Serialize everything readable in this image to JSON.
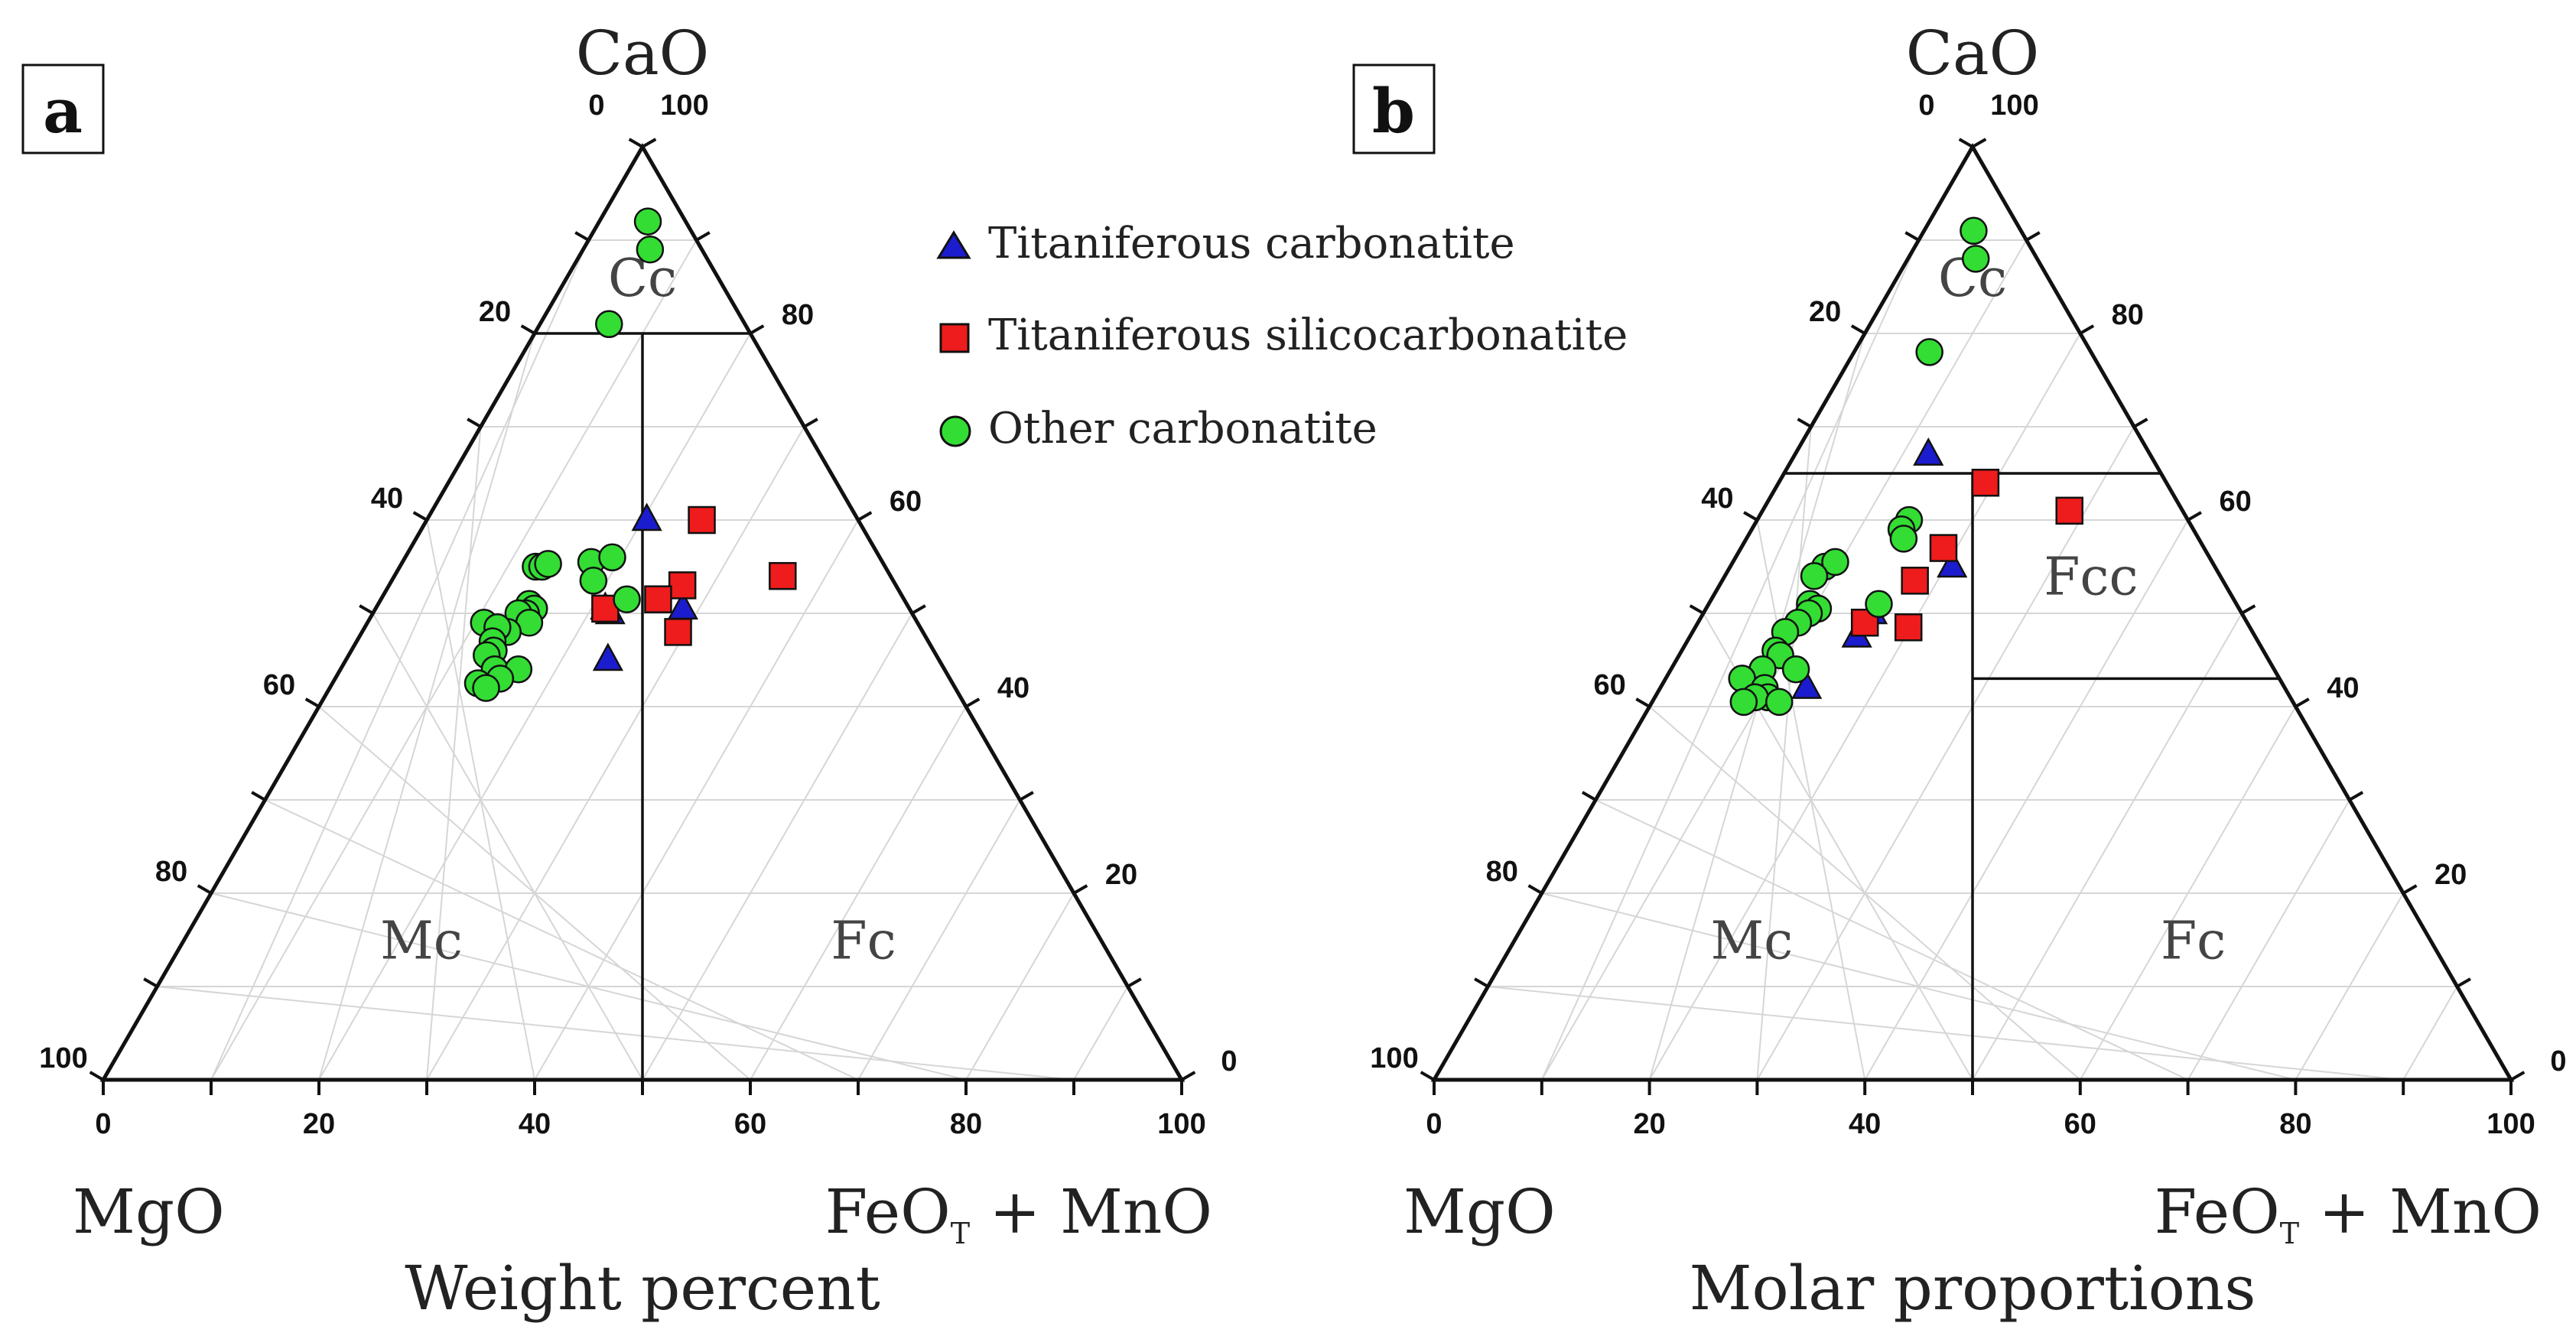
{
  "colors": {
    "titaniferous_carbonatite": "#1c1ccf",
    "titaniferous_silicocarbonatite": "#ee1c1c",
    "other_carbonatite": "#33dd33",
    "grid": "#d6d6d6",
    "axis": "#111111"
  },
  "legend": [
    {
      "key": "titaniferous_carbonatite",
      "label": "Titaniferous carbonatite",
      "marker": "triangle"
    },
    {
      "key": "titaniferous_silicocarbonatite",
      "label": "Titaniferous silicocarbonatite",
      "marker": "square"
    },
    {
      "key": "other_carbonatite",
      "label": "Other carbonatite",
      "marker": "circle"
    }
  ],
  "chart_data": [
    {
      "type": "scatter",
      "diagram": "ternary",
      "panel_label": "a",
      "subtitle": "Weight percent",
      "apex_labels": {
        "top": "CaO",
        "left": "MgO",
        "right_main": "FeO",
        "right_sub": "T",
        "right_tail": " + MnO"
      },
      "axis_ranges": {
        "CaO": [
          0,
          100
        ],
        "MgO": [
          0,
          100
        ],
        "FeO_MnO": [
          0,
          100
        ]
      },
      "ticks": {
        "bottom": [
          "0",
          "20",
          "40",
          "60",
          "80",
          "100"
        ],
        "left": [
          "100",
          "80",
          "60",
          "40",
          "20",
          "0"
        ],
        "right": [
          "0",
          "20",
          "40",
          "60",
          "80",
          "100"
        ]
      },
      "field_labels": [
        {
          "text": "Cc",
          "CaO": 84,
          "FeO_MnO": 8
        },
        {
          "text": "Mc",
          "CaO": 13,
          "FeO_MnO": 23
        },
        {
          "text": "Fc",
          "CaO": 13,
          "FeO_MnO": 64
        }
      ],
      "boundaries": [
        {
          "from": {
            "CaO": 80,
            "FeO_MnO": 0
          },
          "to": {
            "CaO": 80,
            "FeO_MnO": 20
          }
        },
        {
          "from": {
            "CaO": 80,
            "FeO_MnO": 10
          },
          "to": {
            "CaO": 0,
            "FeO_MnO": 50
          }
        }
      ],
      "series": [
        {
          "key": "titaniferous_carbonatite",
          "points": [
            {
              "CaO": 60,
              "FeO_MnO": 20.4
            },
            {
              "CaO": 50,
              "FeO_MnO": 22
            },
            {
              "CaO": 50.5,
              "FeO_MnO": 21.3
            },
            {
              "CaO": 50.5,
              "FeO_MnO": 28.5
            },
            {
              "CaO": 45,
              "FeO_MnO": 24.3
            }
          ]
        },
        {
          "key": "titaniferous_silicocarbonatite",
          "points": [
            {
              "CaO": 60,
              "FeO_MnO": 25.5
            },
            {
              "CaO": 54,
              "FeO_MnO": 36
            },
            {
              "CaO": 53,
              "FeO_MnO": 27.2
            },
            {
              "CaO": 51.5,
              "FeO_MnO": 25.7
            },
            {
              "CaO": 50.5,
              "FeO_MnO": 21.3
            },
            {
              "CaO": 48,
              "FeO_MnO": 29.3
            }
          ]
        },
        {
          "key": "other_carbonatite",
          "points": [
            {
              "CaO": 92,
              "FeO_MnO": 4.5
            },
            {
              "CaO": 89,
              "FeO_MnO": 6.2
            },
            {
              "CaO": 81,
              "FeO_MnO": 6.4
            },
            {
              "CaO": 55,
              "FeO_MnO": 12.6
            },
            {
              "CaO": 55,
              "FeO_MnO": 13.2
            },
            {
              "CaO": 55.3,
              "FeO_MnO": 13.6
            },
            {
              "CaO": 55.5,
              "FeO_MnO": 17.5
            },
            {
              "CaO": 56,
              "FeO_MnO": 19.2
            },
            {
              "CaO": 53.5,
              "FeO_MnO": 18.7
            },
            {
              "CaO": 51.5,
              "FeO_MnO": 22.8
            },
            {
              "CaO": 51,
              "FeO_MnO": 14
            },
            {
              "CaO": 50.5,
              "FeO_MnO": 14.7
            },
            {
              "CaO": 50,
              "FeO_MnO": 14.2
            },
            {
              "CaO": 50,
              "FeO_MnO": 13.5
            },
            {
              "CaO": 49,
              "FeO_MnO": 15
            },
            {
              "CaO": 48,
              "FeO_MnO": 13.5
            },
            {
              "CaO": 49,
              "FeO_MnO": 10.8
            },
            {
              "CaO": 48.5,
              "FeO_MnO": 12.3
            },
            {
              "CaO": 47,
              "FeO_MnO": 12.6
            },
            {
              "CaO": 46,
              "FeO_MnO": 13.2
            },
            {
              "CaO": 45.5,
              "FeO_MnO": 12.8
            },
            {
              "CaO": 44,
              "FeO_MnO": 14.3
            },
            {
              "CaO": 44,
              "FeO_MnO": 16.5
            },
            {
              "CaO": 43,
              "FeO_MnO": 15.3
            },
            {
              "CaO": 42.5,
              "FeO_MnO": 13.5
            },
            {
              "CaO": 42,
              "FeO_MnO": 14.5
            }
          ]
        }
      ]
    },
    {
      "type": "scatter",
      "diagram": "ternary",
      "panel_label": "b",
      "subtitle": "Molar proportions",
      "apex_labels": {
        "top": "CaO",
        "left": "MgO",
        "right_main": "FeO",
        "right_sub": "T",
        "right_tail": " + MnO"
      },
      "axis_ranges": {
        "CaO": [
          0,
          100
        ],
        "MgO": [
          0,
          100
        ],
        "FeO_MnO": [
          0,
          100
        ]
      },
      "ticks": {
        "bottom": [
          "0",
          "20",
          "40",
          "60",
          "80",
          "100"
        ],
        "left": [
          "100",
          "80",
          "60",
          "40",
          "20",
          "0"
        ],
        "right": [
          "0",
          "20",
          "40",
          "60",
          "80",
          "100"
        ]
      },
      "field_labels": [
        {
          "text": "Cc",
          "CaO": 84,
          "FeO_MnO": 8
        },
        {
          "text": "Fcc",
          "CaO": 52,
          "FeO_MnO": 35
        },
        {
          "text": "Mc",
          "CaO": 13,
          "FeO_MnO": 23
        },
        {
          "text": "Fc",
          "CaO": 13,
          "FeO_MnO": 64
        }
      ],
      "boundaries": [
        {
          "from": {
            "CaO": 65,
            "FeO_MnO": 0
          },
          "to": {
            "CaO": 65,
            "FeO_MnO": 35
          }
        },
        {
          "from": {
            "CaO": 65,
            "FeO_MnO": 17.5
          },
          "to": {
            "CaO": 0,
            "FeO_MnO": 50
          }
        },
        {
          "from": {
            "CaO": 43,
            "FeO_MnO": 28.5
          },
          "to": {
            "CaO": 43,
            "FeO_MnO": 57
          }
        }
      ],
      "series": [
        {
          "key": "titaniferous_carbonatite",
          "points": [
            {
              "CaO": 67,
              "FeO_MnO": 12.4
            },
            {
              "CaO": 55,
              "FeO_MnO": 20.6
            },
            {
              "CaO": 50,
              "FeO_MnO": 15.7
            },
            {
              "CaO": 47.5,
              "FeO_MnO": 15.5
            },
            {
              "CaO": 42,
              "FeO_MnO": 13.6
            }
          ]
        },
        {
          "key": "titaniferous_silicocarbonatite",
          "points": [
            {
              "CaO": 64,
              "FeO_MnO": 19.2
            },
            {
              "CaO": 61,
              "FeO_MnO": 28.5
            },
            {
              "CaO": 57,
              "FeO_MnO": 18.8
            },
            {
              "CaO": 53.5,
              "FeO_MnO": 17.9
            },
            {
              "CaO": 49,
              "FeO_MnO": 15.5
            },
            {
              "CaO": 48.5,
              "FeO_MnO": 19.8
            }
          ]
        },
        {
          "key": "other_carbonatite",
          "points": [
            {
              "CaO": 91,
              "FeO_MnO": 4.6
            },
            {
              "CaO": 88,
              "FeO_MnO": 6.3
            },
            {
              "CaO": 78,
              "FeO_MnO": 7
            },
            {
              "CaO": 60,
              "FeO_MnO": 14.1
            },
            {
              "CaO": 59,
              "FeO_MnO": 13.9
            },
            {
              "CaO": 58,
              "FeO_MnO": 14.6
            },
            {
              "CaO": 51,
              "FeO_MnO": 15.8
            },
            {
              "CaO": 55,
              "FeO_MnO": 8.8
            },
            {
              "CaO": 55.5,
              "FeO_MnO": 9.5
            },
            {
              "CaO": 54,
              "FeO_MnO": 8.3
            },
            {
              "CaO": 51,
              "FeO_MnO": 9.4
            },
            {
              "CaO": 50.5,
              "FeO_MnO": 10.4
            },
            {
              "CaO": 50,
              "FeO_MnO": 9.8
            },
            {
              "CaO": 49,
              "FeO_MnO": 9.3
            },
            {
              "CaO": 48,
              "FeO_MnO": 8.6
            },
            {
              "CaO": 46,
              "FeO_MnO": 8.7
            },
            {
              "CaO": 45.5,
              "FeO_MnO": 9.4
            },
            {
              "CaO": 44,
              "FeO_MnO": 11.6
            },
            {
              "CaO": 44,
              "FeO_MnO": 8.5
            },
            {
              "CaO": 43,
              "FeO_MnO": 7.1
            },
            {
              "CaO": 42,
              "FeO_MnO": 9.7
            },
            {
              "CaO": 41,
              "FeO_MnO": 10.5
            },
            {
              "CaO": 41,
              "FeO_MnO": 9.3
            },
            {
              "CaO": 40.5,
              "FeO_MnO": 8.5
            },
            {
              "CaO": 40.5,
              "FeO_MnO": 11.8
            }
          ]
        }
      ]
    }
  ]
}
